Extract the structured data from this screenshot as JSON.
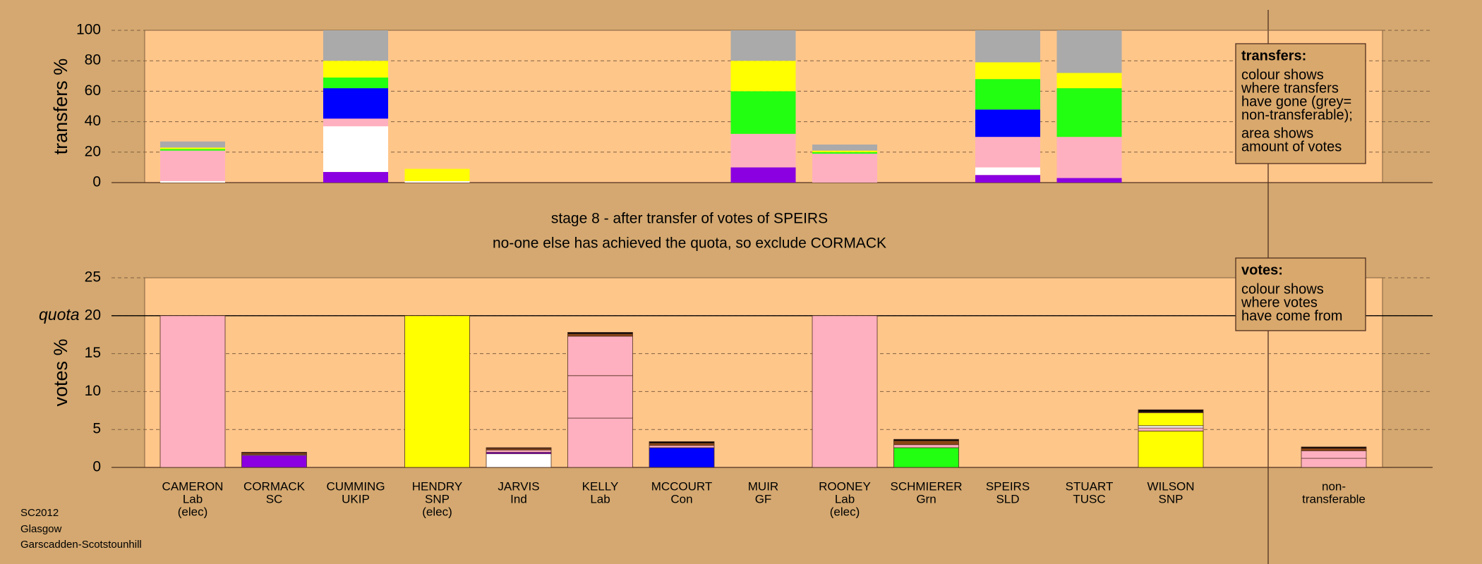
{
  "header": [
    "stage 8 - after transfer of votes of SPEIRS",
    "no-one else has achieved the quota, so exclude CORMACK"
  ],
  "footer": [
    "SC2012",
    "Glasgow",
    "Garscadden-Scotstounhill"
  ],
  "chart_data": [
    {
      "type": "stacked-bar",
      "ylabel": "transfers %",
      "ylim": [
        0,
        100
      ],
      "yticks": [
        0,
        20,
        40,
        60,
        80,
        100
      ],
      "grid": true,
      "annotation": {
        "title": "transfers:",
        "paragraphs": [
          [
            "colour shows",
            "where transfers",
            "have gone (grey=",
            "non-transferable);"
          ],
          [
            "area shows",
            "amount of votes"
          ]
        ]
      },
      "series": [
        {
          "color": "#8b00e0",
          "values": [
            null,
            null,
            7,
            null,
            null,
            null,
            null,
            10,
            null,
            null,
            5,
            3,
            null,
            null,
            null
          ]
        },
        {
          "color": "#ffffff",
          "values": [
            1,
            null,
            30,
            1,
            null,
            null,
            null,
            null,
            null,
            null,
            5,
            null,
            null,
            null,
            null
          ]
        },
        {
          "color": "#ffb0c0",
          "values": [
            20,
            null,
            5,
            null,
            null,
            null,
            null,
            22,
            19,
            null,
            20,
            27,
            null,
            null,
            null
          ]
        },
        {
          "color": "#0000ff",
          "values": [
            null,
            null,
            20,
            null,
            null,
            null,
            null,
            null,
            null,
            null,
            18,
            null,
            null,
            null,
            null
          ]
        },
        {
          "color": "#22ff11",
          "values": [
            1,
            null,
            7,
            null,
            null,
            null,
            null,
            28,
            1,
            null,
            20,
            32,
            null,
            null,
            null
          ]
        },
        {
          "color": "#ffff00",
          "values": [
            1,
            null,
            11,
            8,
            null,
            null,
            null,
            20,
            1,
            null,
            11,
            10,
            null,
            null,
            null
          ]
        },
        {
          "color": "#aaaaaa",
          "values": [
            4,
            null,
            20,
            null,
            null,
            null,
            null,
            20,
            4,
            null,
            21,
            28,
            null,
            null,
            null
          ]
        }
      ]
    },
    {
      "type": "stacked-bar",
      "ylabel": "votes %",
      "ylim": [
        0,
        25
      ],
      "yticks": [
        0,
        5,
        10,
        15,
        20,
        25
      ],
      "grid": true,
      "quota": {
        "value": 20,
        "label": "quota"
      },
      "annotation": {
        "title": "votes:",
        "paragraphs": [
          [
            "colour shows",
            "where votes",
            "have come from"
          ]
        ]
      },
      "categories": [
        [
          "CAMERON",
          "Lab",
          "(elec)"
        ],
        [
          "CORMACK",
          "SC"
        ],
        [
          "CUMMING",
          "UKIP"
        ],
        [
          "HENDRY",
          "SNP",
          "(elec)"
        ],
        [
          "JARVIS",
          "Ind"
        ],
        [
          "KELLY",
          "Lab"
        ],
        [
          "MCCOURT",
          "Con"
        ],
        [
          "MUIR",
          "GF"
        ],
        [
          "ROONEY",
          "Lab",
          "(elec)"
        ],
        [
          "SCHMIERER",
          "Grn"
        ],
        [
          "SPEIRS",
          "SLD"
        ],
        [
          "STUART",
          "TUSC"
        ],
        [
          "WILSON",
          "SNP"
        ],
        null,
        [
          "non-",
          "transferable"
        ]
      ],
      "series": [
        {
          "color": "#ffffff",
          "values": [
            null,
            null,
            null,
            null,
            1.8,
            null,
            null,
            null,
            null,
            null,
            null,
            null,
            null,
            null,
            null
          ]
        },
        {
          "color": "#8b00e0",
          "values": [
            null,
            1.6,
            null,
            null,
            0.2,
            null,
            null,
            null,
            null,
            null,
            null,
            null,
            null,
            null,
            null
          ]
        },
        {
          "color": "#0000ff",
          "values": [
            null,
            null,
            null,
            null,
            null,
            null,
            2.6,
            null,
            null,
            null,
            null,
            null,
            null,
            null,
            null
          ]
        },
        {
          "color": "#22ff11",
          "values": [
            null,
            null,
            null,
            null,
            null,
            null,
            null,
            null,
            null,
            2.6,
            null,
            null,
            null,
            null,
            null
          ]
        },
        {
          "color": "#ffff00",
          "values": [
            null,
            null,
            null,
            20,
            null,
            null,
            null,
            null,
            null,
            null,
            null,
            null,
            4.8,
            null,
            null
          ]
        },
        {
          "color": "#ffb0c0",
          "values": [
            20,
            null,
            null,
            null,
            null,
            6.5,
            null,
            null,
            20,
            null,
            null,
            null,
            0.4,
            null,
            1.2
          ]
        },
        {
          "color": "#ffb0c0",
          "values": [
            null,
            null,
            null,
            null,
            null,
            5.6,
            null,
            null,
            null,
            null,
            null,
            null,
            null,
            null,
            1.0
          ]
        },
        {
          "color": "#ffb0c0",
          "values": [
            null,
            null,
            null,
            null,
            0.3,
            5.2,
            0.3,
            null,
            null,
            0.4,
            null,
            null,
            null,
            null,
            null
          ]
        },
        {
          "color": "#ffffff",
          "values": [
            null,
            0.1,
            null,
            null,
            null,
            null,
            null,
            null,
            null,
            null,
            null,
            null,
            0.3,
            null,
            null
          ]
        },
        {
          "color": "#ffff00",
          "values": [
            null,
            null,
            null,
            null,
            null,
            null,
            null,
            null,
            null,
            null,
            null,
            null,
            1.7,
            null,
            null
          ]
        },
        {
          "color": "#8b4513",
          "values": [
            null,
            0.2,
            null,
            null,
            0.2,
            0.3,
            0.3,
            null,
            null,
            0.5,
            null,
            null,
            0.1,
            null,
            0.3
          ]
        },
        {
          "color": "#000000",
          "values": [
            null,
            0.1,
            null,
            null,
            0.1,
            0.2,
            0.2,
            null,
            null,
            0.2,
            null,
            null,
            0.3,
            null,
            0.2
          ]
        }
      ]
    }
  ]
}
